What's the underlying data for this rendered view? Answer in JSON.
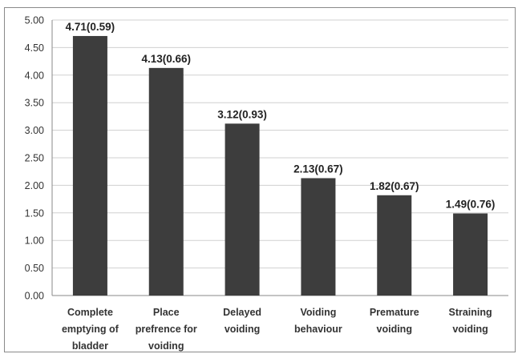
{
  "chart_data": {
    "type": "bar",
    "categories": [
      [
        "Complete",
        "emptying of",
        "bladder"
      ],
      [
        "Place",
        "prefrence for",
        "voiding"
      ],
      [
        "Delayed",
        "voiding"
      ],
      [
        "Voiding",
        "behaviour"
      ],
      [
        "Premature",
        "voiding"
      ],
      [
        "Straining",
        "voiding"
      ]
    ],
    "values": [
      4.71,
      4.13,
      3.12,
      2.13,
      1.82,
      1.49
    ],
    "data_labels": [
      "4.71(0.59)",
      "4.13(0.66)",
      "3.12(0.93)",
      "2.13(0.67)",
      "1.82(0.67)",
      "1.49(0.76)"
    ],
    "yticks": [
      "0.00",
      "0.50",
      "1.00",
      "1.50",
      "2.00",
      "2.50",
      "3.00",
      "3.50",
      "4.00",
      "4.50",
      "5.00"
    ],
    "ylim": [
      0,
      5
    ],
    "grid": true,
    "colors": {
      "bar": "#3d3d3d",
      "grid": "#d0d0d0",
      "axis": "#8a8a8a"
    }
  }
}
